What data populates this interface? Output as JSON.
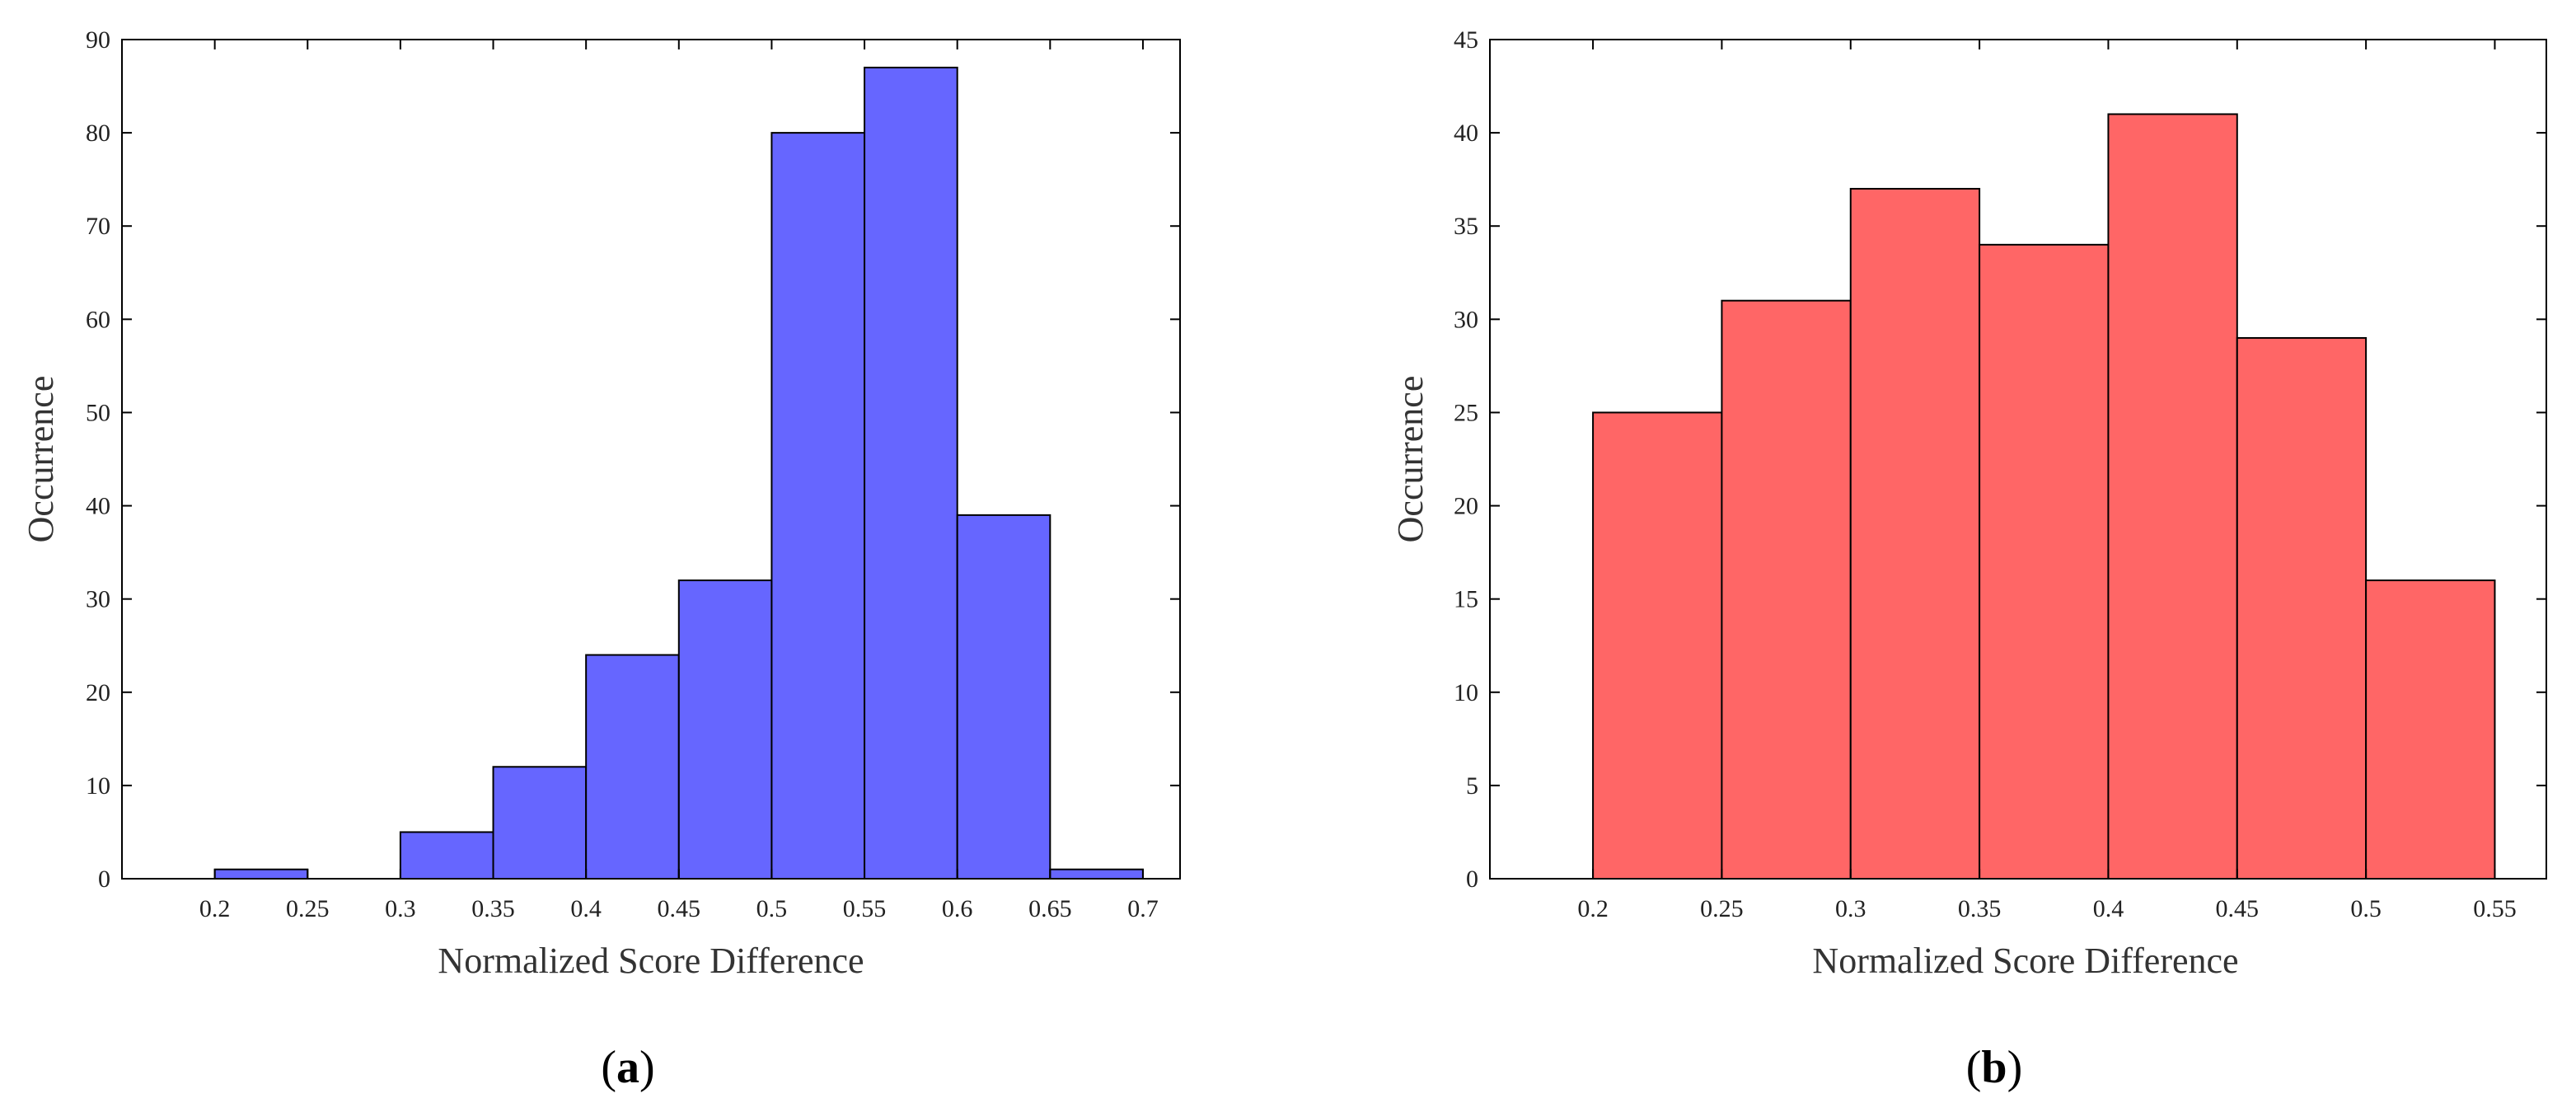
{
  "chart_data": [
    {
      "type": "bar",
      "subtype": "histogram",
      "panel_label": "a",
      "bar_color": "#6666ff",
      "bins": [
        {
          "start": 0.2,
          "end": 0.25,
          "value": 1
        },
        {
          "start": 0.25,
          "end": 0.3,
          "value": 0
        },
        {
          "start": 0.3,
          "end": 0.35,
          "value": 5
        },
        {
          "start": 0.35,
          "end": 0.4,
          "value": 12
        },
        {
          "start": 0.4,
          "end": 0.45,
          "value": 24
        },
        {
          "start": 0.45,
          "end": 0.5,
          "value": 32
        },
        {
          "start": 0.5,
          "end": 0.55,
          "value": 80
        },
        {
          "start": 0.55,
          "end": 0.6,
          "value": 87
        },
        {
          "start": 0.6,
          "end": 0.65,
          "value": 39
        },
        {
          "start": 0.65,
          "end": 0.7,
          "value": 1
        }
      ],
      "xlim": [
        0.15,
        0.72
      ],
      "ylim": [
        0,
        90
      ],
      "xticks": [
        0.2,
        0.25,
        0.3,
        0.35,
        0.4,
        0.45,
        0.5,
        0.55,
        0.6,
        0.65,
        0.7
      ],
      "xtick_labels": [
        "0.2",
        "0.25",
        "0.3",
        "0.35",
        "0.4",
        "0.45",
        "0.5",
        "0.55",
        "0.6",
        "0.65",
        "0.7"
      ],
      "yticks": [
        0,
        10,
        20,
        30,
        40,
        50,
        60,
        70,
        80,
        90
      ],
      "ytick_labels": [
        "0",
        "10",
        "20",
        "30",
        "40",
        "50",
        "60",
        "70",
        "80",
        "90"
      ],
      "xlabel": "Normalized Score Difference",
      "ylabel": "Occurrence",
      "grid": false
    },
    {
      "type": "bar",
      "subtype": "histogram",
      "panel_label": "b",
      "bar_color": "#ff6666",
      "bins": [
        {
          "start": 0.2,
          "end": 0.25,
          "value": 25
        },
        {
          "start": 0.25,
          "end": 0.3,
          "value": 31
        },
        {
          "start": 0.3,
          "end": 0.35,
          "value": 37
        },
        {
          "start": 0.35,
          "end": 0.4,
          "value": 34
        },
        {
          "start": 0.4,
          "end": 0.45,
          "value": 41
        },
        {
          "start": 0.45,
          "end": 0.5,
          "value": 29
        },
        {
          "start": 0.5,
          "end": 0.55,
          "value": 16
        }
      ],
      "xlim": [
        0.16,
        0.57
      ],
      "ylim": [
        0,
        45
      ],
      "xticks": [
        0.2,
        0.25,
        0.3,
        0.35,
        0.4,
        0.45,
        0.5,
        0.55
      ],
      "xtick_labels": [
        "0.2",
        "0.25",
        "0.3",
        "0.35",
        "0.4",
        "0.45",
        "0.5",
        "0.55"
      ],
      "yticks": [
        0,
        5,
        10,
        15,
        20,
        25,
        30,
        35,
        40,
        45
      ],
      "ytick_labels": [
        "0",
        "5",
        "10",
        "15",
        "20",
        "25",
        "30",
        "35",
        "40",
        "45"
      ],
      "xlabel": "Normalized Score Difference",
      "ylabel": "Occurrence",
      "grid": false
    }
  ]
}
